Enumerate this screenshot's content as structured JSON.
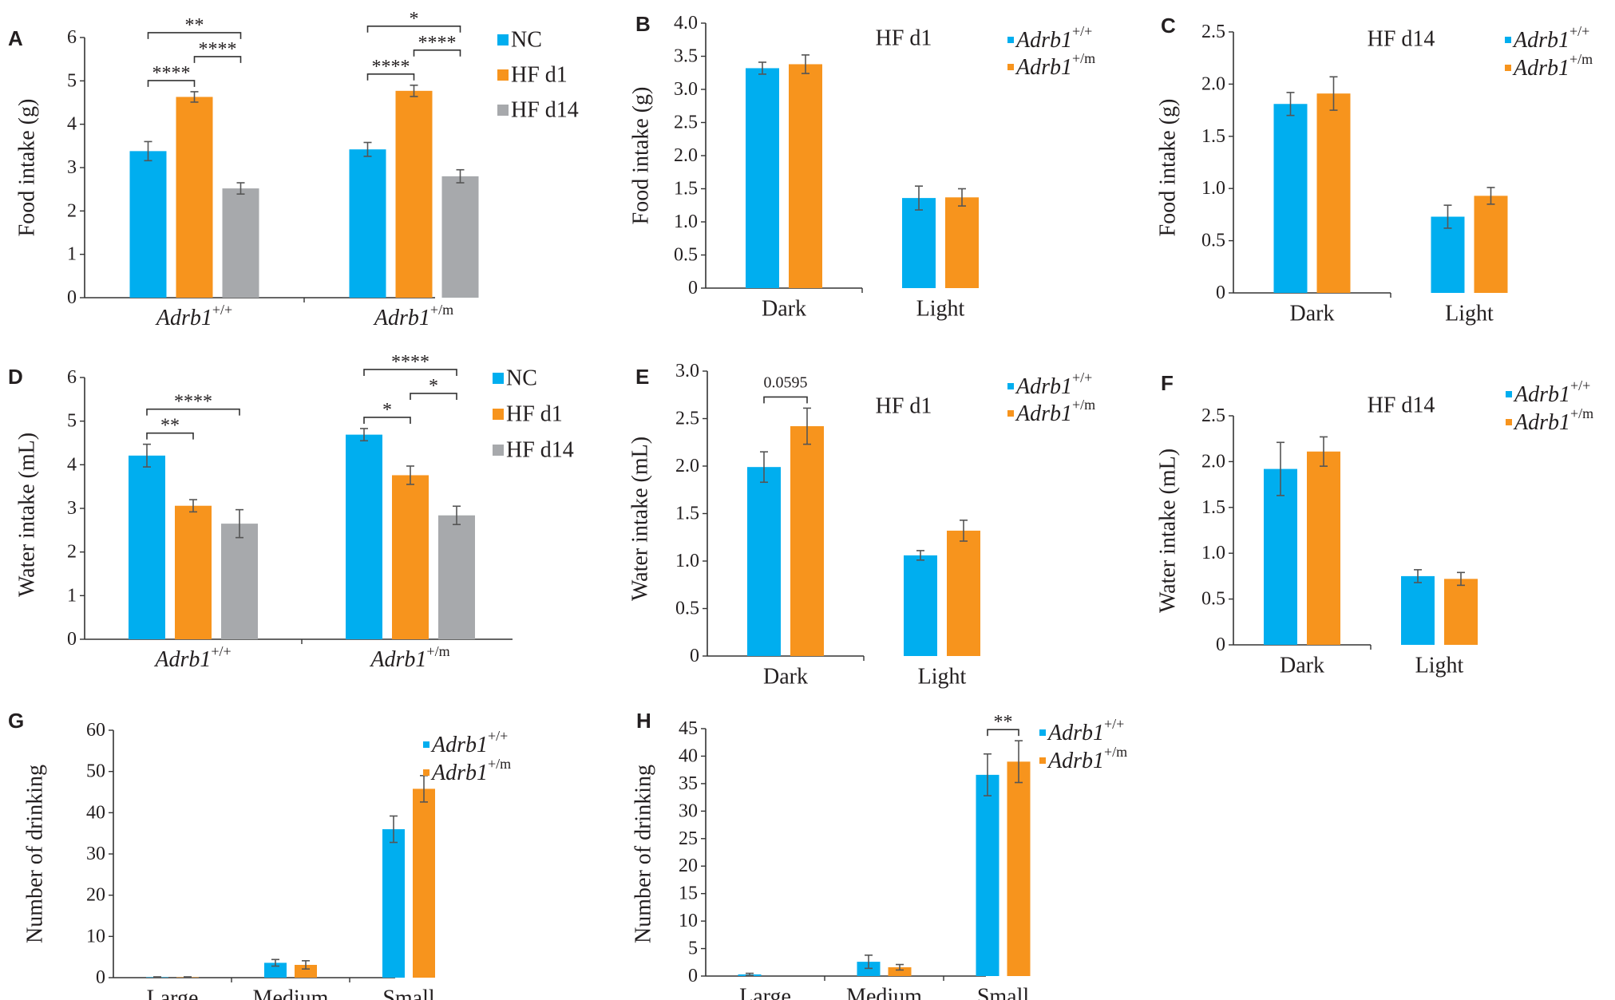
{
  "colors": {
    "wt": "#00AEEF",
    "mut": "#F7941D",
    "hf14": "#A7A9AC",
    "axis": "#333333",
    "text": "#231F20",
    "err": "#555555"
  },
  "chart_data": [
    {
      "panel_letter": "A",
      "type": "bar",
      "ylabel": "Food intake (g)",
      "ylim": [
        0,
        6
      ],
      "yticks": [
        "0",
        "1",
        "2",
        "3",
        "4",
        "5",
        "6"
      ],
      "categories": [
        {
          "name": "Adrb1",
          "sup": "+/+"
        },
        {
          "name": "Adrb1",
          "sup": "+/m"
        }
      ],
      "series": [
        {
          "name": "NC",
          "values": [
            3.38,
            3.42
          ],
          "errors": [
            0.22,
            0.16
          ]
        },
        {
          "name": "HF d1",
          "values": [
            4.63,
            4.77
          ],
          "errors": [
            0.12,
            0.13
          ]
        },
        {
          "name": "HF d14",
          "values": [
            2.52,
            2.8
          ],
          "errors": [
            0.13,
            0.15
          ]
        }
      ],
      "significance": [
        {
          "category": 0,
          "from": 0,
          "to": 2,
          "label": "**"
        },
        {
          "category": 0,
          "from": 0,
          "to": 1,
          "label": "****"
        },
        {
          "category": 0,
          "from": 1,
          "to": 2,
          "label": "****"
        },
        {
          "category": 1,
          "from": 0,
          "to": 2,
          "label": "*"
        },
        {
          "category": 1,
          "from": 0,
          "to": 1,
          "label": "****"
        },
        {
          "category": 1,
          "from": 1,
          "to": 2,
          "label": "****"
        }
      ],
      "legend_placement": "top-right"
    },
    {
      "panel_letter": "B",
      "type": "bar",
      "title": "HF d1",
      "ylabel": "Food intake (g)",
      "ylim": [
        0,
        4
      ],
      "yticks": [
        "0",
        "0.5",
        "1.0",
        "1.5",
        "2.0",
        "2.5",
        "3.0",
        "3.5",
        "4.0"
      ],
      "categories": [
        {
          "name": "Dark",
          "sup": ""
        },
        {
          "name": "Light",
          "sup": ""
        }
      ],
      "series": [
        {
          "name": "Adrb1",
          "sup": "+/+",
          "values": [
            3.32,
            1.36
          ],
          "errors": [
            0.09,
            0.18
          ]
        },
        {
          "name": "Adrb1",
          "sup": "+/m",
          "values": [
            3.38,
            1.37
          ],
          "errors": [
            0.14,
            0.13
          ]
        }
      ],
      "significance": [],
      "legend_placement": "top-right"
    },
    {
      "panel_letter": "C",
      "type": "bar",
      "title": "HF d14",
      "ylabel": "Food intake (g)",
      "ylim": [
        0,
        2.5
      ],
      "yticks": [
        "0",
        "0.5",
        "1.0",
        "1.5",
        "2.0",
        "2.5"
      ],
      "categories": [
        {
          "name": "Dark",
          "sup": ""
        },
        {
          "name": "Light",
          "sup": ""
        }
      ],
      "series": [
        {
          "name": "Adrb1",
          "sup": "+/+",
          "values": [
            1.81,
            0.73
          ],
          "errors": [
            0.11,
            0.11
          ]
        },
        {
          "name": "Adrb1",
          "sup": "+/m",
          "values": [
            1.91,
            0.93
          ],
          "errors": [
            0.16,
            0.08
          ]
        }
      ],
      "significance": [],
      "legend_placement": "top-right"
    },
    {
      "panel_letter": "D",
      "type": "bar",
      "ylabel": "Water intake (mL)",
      "ylim": [
        0,
        6
      ],
      "yticks": [
        "0",
        "1",
        "2",
        "3",
        "4",
        "5",
        "6"
      ],
      "categories": [
        {
          "name": "Adrb1",
          "sup": "+/+"
        },
        {
          "name": "Adrb1",
          "sup": "+/m"
        }
      ],
      "series": [
        {
          "name": "NC",
          "values": [
            4.21,
            4.69
          ],
          "errors": [
            0.26,
            0.14
          ]
        },
        {
          "name": "HF d1",
          "values": [
            3.06,
            3.76
          ],
          "errors": [
            0.14,
            0.21
          ]
        },
        {
          "name": "HF d14",
          "values": [
            2.65,
            2.84
          ],
          "errors": [
            0.32,
            0.21
          ]
        }
      ],
      "significance": [
        {
          "category": 0,
          "from": 0,
          "to": 2,
          "label": "****"
        },
        {
          "category": 0,
          "from": 0,
          "to": 1,
          "label": "**"
        },
        {
          "category": 1,
          "from": 0,
          "to": 2,
          "label": "****"
        },
        {
          "category": 1,
          "from": 0,
          "to": 1,
          "label": "*"
        },
        {
          "category": 1,
          "from": 1,
          "to": 2,
          "label": "*"
        }
      ],
      "legend_placement": "top-right"
    },
    {
      "panel_letter": "E",
      "type": "bar",
      "title": "HF d1",
      "ylabel": "Water intake (mL)",
      "ylim": [
        0,
        3
      ],
      "yticks": [
        "0",
        "0.5",
        "1.0",
        "1.5",
        "2.0",
        "2.5",
        "3.0"
      ],
      "categories": [
        {
          "name": "Dark",
          "sup": ""
        },
        {
          "name": "Light",
          "sup": ""
        }
      ],
      "series": [
        {
          "name": "Adrb1",
          "sup": "+/+",
          "values": [
            1.99,
            1.06
          ],
          "errors": [
            0.16,
            0.05
          ]
        },
        {
          "name": "Adrb1",
          "sup": "+/m",
          "values": [
            2.42,
            1.32
          ],
          "errors": [
            0.19,
            0.11
          ]
        }
      ],
      "significance": [
        {
          "category": 0,
          "from": 0,
          "to": 1,
          "label": "0.0595"
        }
      ],
      "legend_placement": "top-right"
    },
    {
      "panel_letter": "F",
      "type": "bar",
      "title": "HF d14",
      "ylabel": "Water intake (mL)",
      "ylim": [
        0,
        2.5
      ],
      "yticks": [
        "0",
        "0.5",
        "1.0",
        "1.5",
        "2.0",
        "2.5"
      ],
      "categories": [
        {
          "name": "Dark",
          "sup": ""
        },
        {
          "name": "Light",
          "sup": ""
        }
      ],
      "series": [
        {
          "name": "Adrb1",
          "sup": "+/+",
          "values": [
            1.92,
            0.75
          ],
          "errors": [
            0.29,
            0.07
          ]
        },
        {
          "name": "Adrb1",
          "sup": "+/m",
          "values": [
            2.11,
            0.72
          ],
          "errors": [
            0.16,
            0.07
          ]
        }
      ],
      "significance": [],
      "legend_placement": "top-right"
    },
    {
      "panel_letter": "G",
      "type": "bar",
      "ylabel": "Number of drinking",
      "ylim": [
        0,
        60
      ],
      "yticks": [
        "0",
        "10",
        "20",
        "30",
        "40",
        "50",
        "60"
      ],
      "categories": [
        {
          "name": "Large",
          "sup": ""
        },
        {
          "name": "Medium",
          "sup": ""
        },
        {
          "name": "Small",
          "sup": ""
        }
      ],
      "series": [
        {
          "name": "Adrb1",
          "sup": "+/+",
          "values": [
            0.1,
            3.6,
            36.0
          ],
          "errors": [
            0.1,
            0.8,
            3.2
          ]
        },
        {
          "name": "Adrb1",
          "sup": "+/m",
          "values": [
            0.1,
            3.1,
            45.8
          ],
          "errors": [
            0.1,
            1.0,
            3.2
          ]
        }
      ],
      "significance": [],
      "legend_placement": "top-right"
    },
    {
      "panel_letter": "H",
      "type": "bar",
      "ylabel": "Number of drinking",
      "ylim": [
        0,
        45
      ],
      "yticks": [
        "0",
        "5",
        "10",
        "15",
        "20",
        "25",
        "30",
        "35",
        "40",
        "45"
      ],
      "categories": [
        {
          "name": "Large",
          "sup": ""
        },
        {
          "name": "Medium",
          "sup": ""
        },
        {
          "name": "Small",
          "sup": ""
        }
      ],
      "series": [
        {
          "name": "Adrb1",
          "sup": "+/+",
          "values": [
            0.3,
            2.6,
            36.6
          ],
          "errors": [
            0.2,
            1.2,
            3.8
          ]
        },
        {
          "name": "Adrb1",
          "sup": "+/m",
          "values": [
            0.0,
            1.6,
            39.0
          ],
          "errors": [
            0.0,
            0.5,
            3.8
          ]
        }
      ],
      "significance": [
        {
          "category": 2,
          "from": 0,
          "to": 1,
          "label": "**"
        }
      ],
      "legend_placement": "top-right"
    }
  ]
}
